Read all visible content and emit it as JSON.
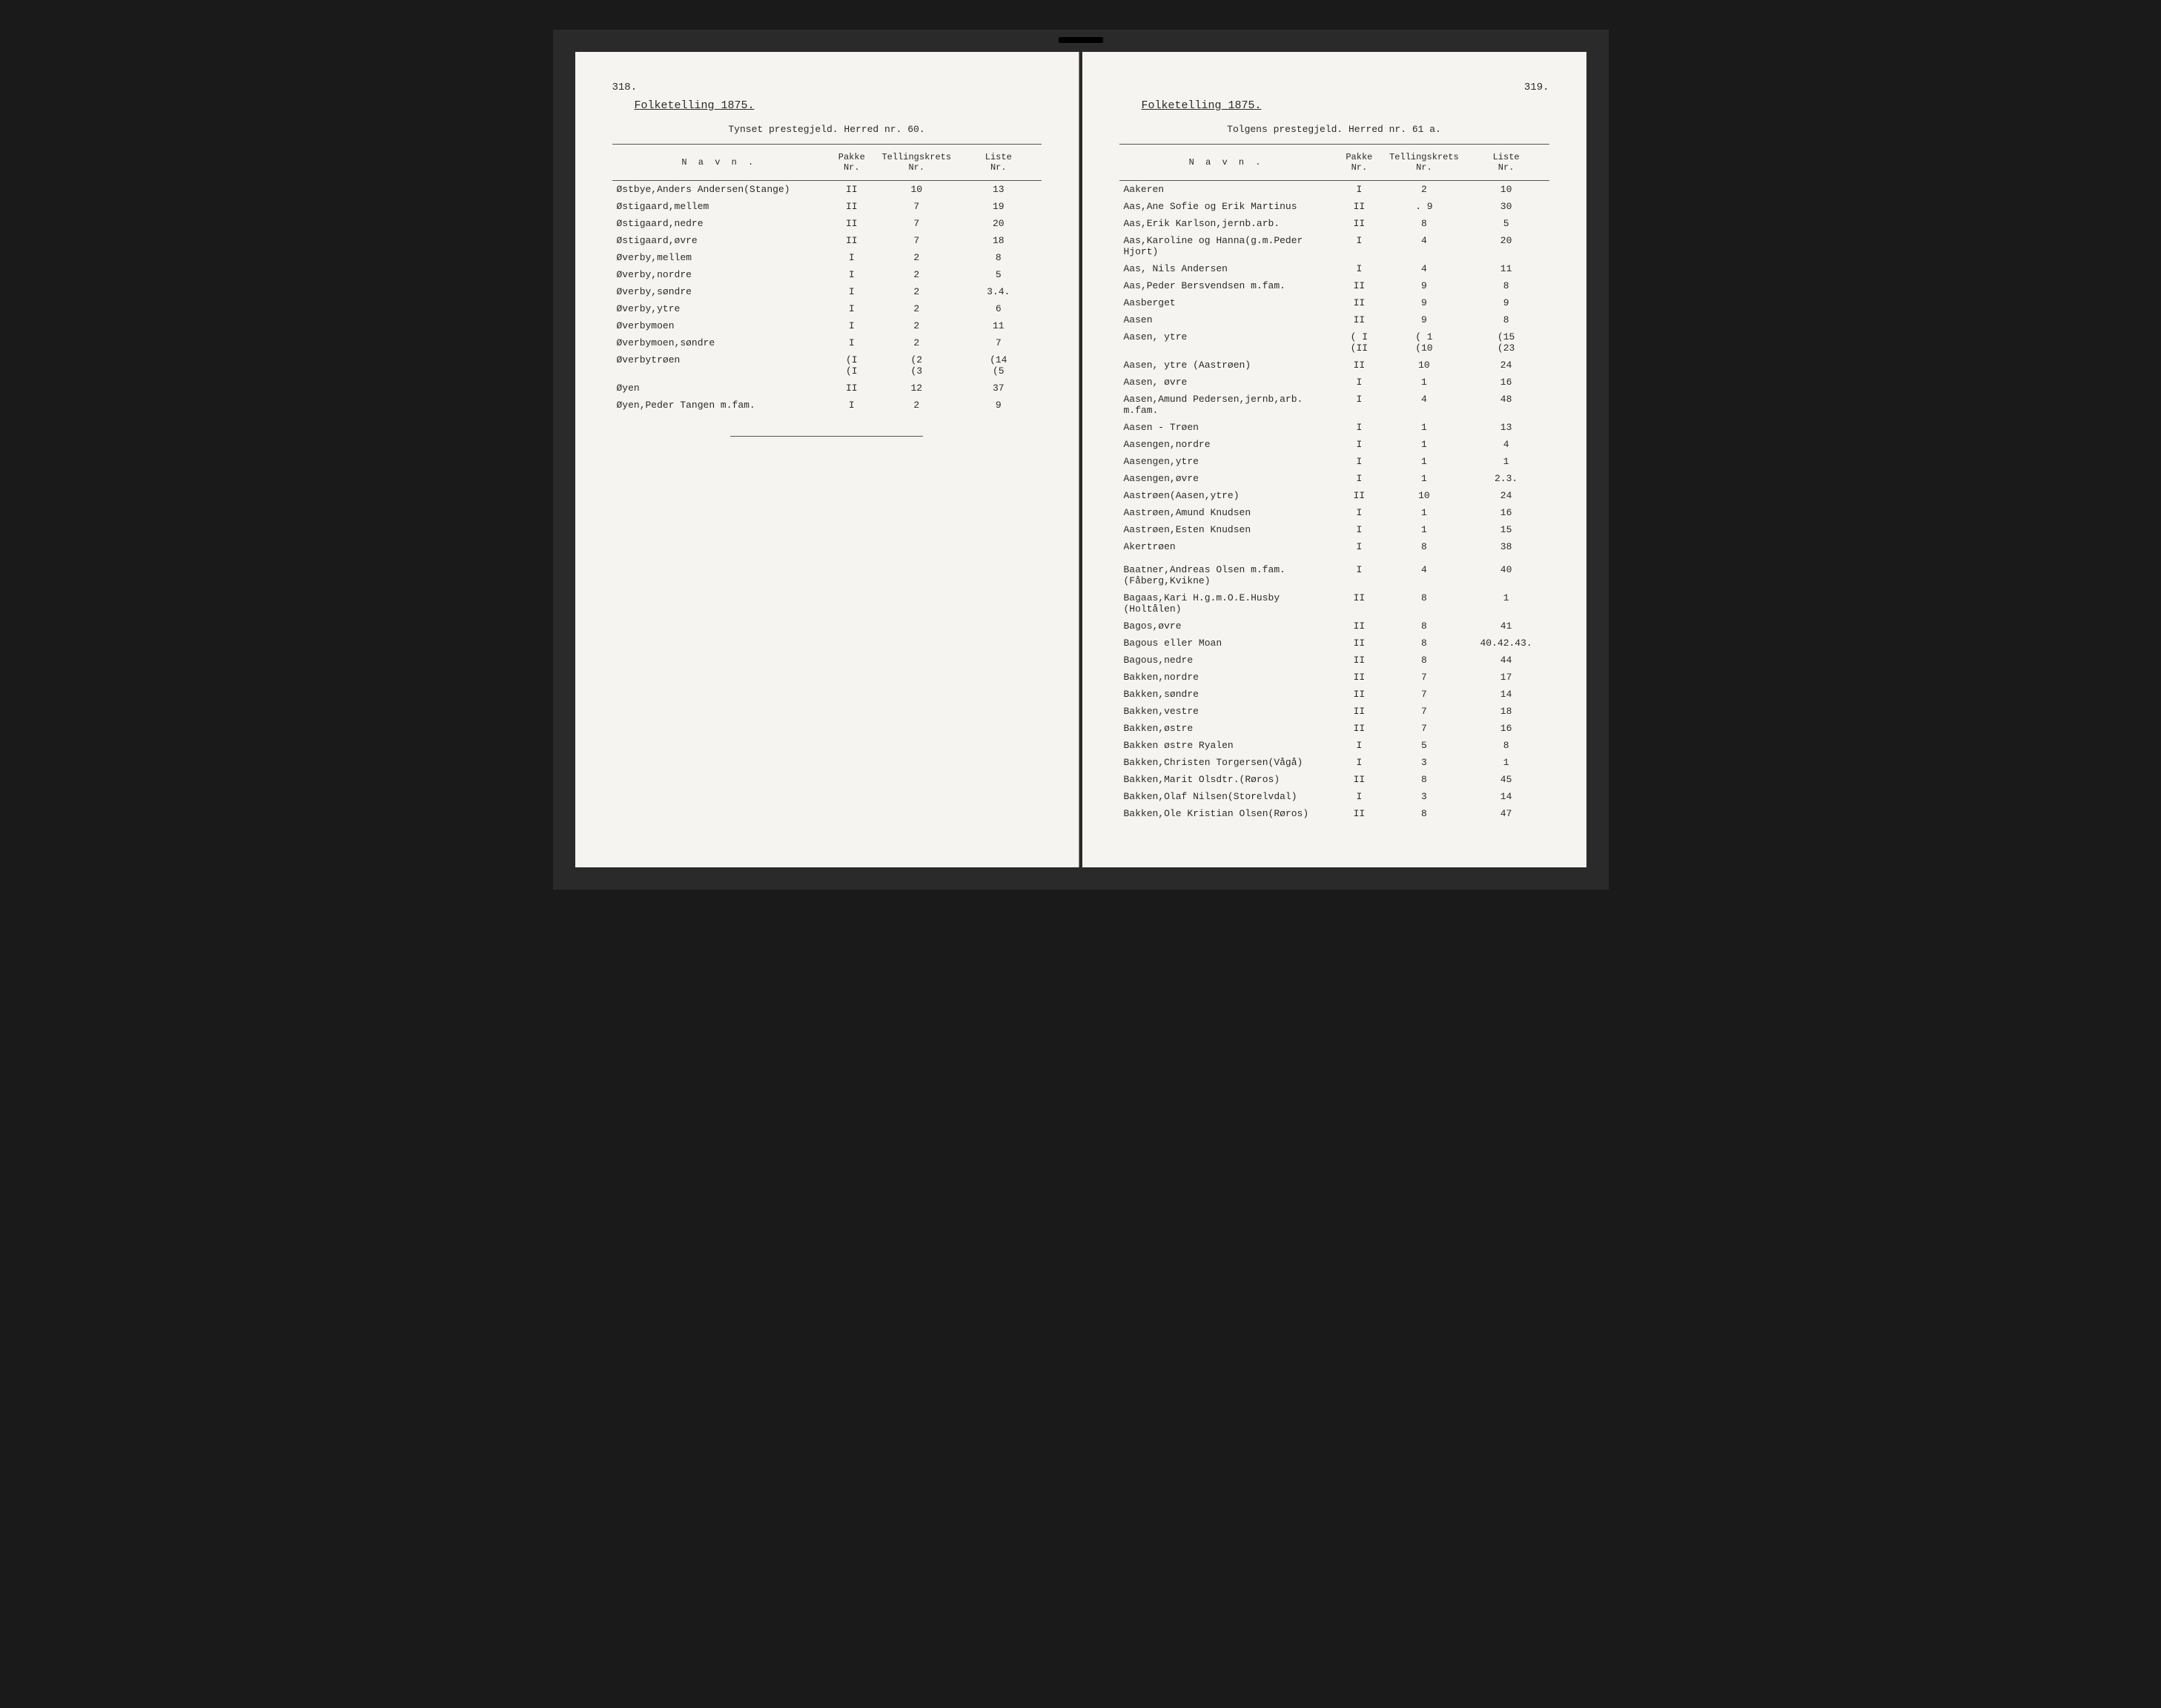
{
  "leftPage": {
    "pageNumber": "318.",
    "title": "Folketelling 1875.",
    "subtitle": "Tynset prestegjeld. Herred nr. 60.",
    "headers": {
      "navn": "N a v n .",
      "pakke": "Pakke\nNr.",
      "tellingskrets": "Tellingskrets\nNr.",
      "liste": "Liste\nNr."
    },
    "rows": [
      {
        "navn": "Østbye,Anders Andersen(Stange)",
        "pakke": "II",
        "krets": "10",
        "liste": "13"
      },
      {
        "navn": "Østigaard,mellem",
        "pakke": "II",
        "krets": "7",
        "liste": "19"
      },
      {
        "navn": "Østigaard,nedre",
        "pakke": "II",
        "krets": "7",
        "liste": "20"
      },
      {
        "navn": "Østigaard,øvre",
        "pakke": "II",
        "krets": "7",
        "liste": "18"
      },
      {
        "navn": "Øverby,mellem",
        "pakke": "I",
        "krets": "2",
        "liste": "8"
      },
      {
        "navn": "Øverby,nordre",
        "pakke": "I",
        "krets": "2",
        "liste": "5"
      },
      {
        "navn": "Øverby,søndre",
        "pakke": "I",
        "krets": "2",
        "liste": "3.4."
      },
      {
        "navn": "Øverby,ytre",
        "pakke": "I",
        "krets": "2",
        "liste": "6"
      },
      {
        "navn": "Øverbymoen",
        "pakke": "I",
        "krets": "2",
        "liste": "11"
      },
      {
        "navn": "Øverbymoen,søndre",
        "pakke": "I",
        "krets": "2",
        "liste": "7"
      },
      {
        "navn": "Øverbytrøen",
        "pakke": "(I\n(I",
        "krets": "(2\n(3",
        "liste": "(14\n(5"
      },
      {
        "navn": "Øyen",
        "pakke": "II",
        "krets": "12",
        "liste": "37"
      },
      {
        "navn": "Øyen,Peder Tangen m.fam.",
        "pakke": "I",
        "krets": "2",
        "liste": "9"
      }
    ]
  },
  "rightPage": {
    "pageNumber": "319.",
    "title": "Folketelling 1875.",
    "subtitle": "Tolgens prestegjeld. Herred nr. 61 a.",
    "headers": {
      "navn": "N a v n .",
      "pakke": "Pakke\nNr.",
      "tellingskrets": "Tellingskrets\nNr.",
      "liste": "Liste\nNr."
    },
    "rows": [
      {
        "navn": "Aakeren",
        "pakke": "I",
        "krets": "2",
        "liste": "10"
      },
      {
        "navn": "Aas,Ane Sofie og Erik Martinus",
        "pakke": "II",
        "krets": ". 9",
        "liste": "30"
      },
      {
        "navn": "Aas,Erik Karlson,jernb.arb.",
        "pakke": "II",
        "krets": "8",
        "liste": "5"
      },
      {
        "navn": "Aas,Karoline og Hanna(g.m.Peder Hjort)",
        "pakke": "I",
        "krets": "4",
        "liste": "20"
      },
      {
        "navn": "Aas, Nils Andersen",
        "pakke": "I",
        "krets": "4",
        "liste": "11"
      },
      {
        "navn": "Aas,Peder Bersvendsen m.fam.",
        "pakke": "II",
        "krets": "9",
        "liste": "8"
      },
      {
        "navn": "Aasberget",
        "pakke": "II",
        "krets": "9",
        "liste": "9"
      },
      {
        "navn": "Aasen",
        "pakke": "II",
        "krets": "9",
        "liste": "8"
      },
      {
        "navn": "Aasen, ytre",
        "pakke": "( I\n(II",
        "krets": "( 1\n(10",
        "liste": "(15\n(23"
      },
      {
        "navn": "Aasen, ytre (Aastrøen)",
        "pakke": "II",
        "krets": "10",
        "liste": "24"
      },
      {
        "navn": "Aasen, øvre",
        "pakke": "I",
        "krets": "1",
        "liste": "16"
      },
      {
        "navn": "Aasen,Amund Pedersen,jernb,arb. m.fam.",
        "pakke": "I",
        "krets": "4",
        "liste": "48"
      },
      {
        "navn": "Aasen - Trøen",
        "pakke": "I",
        "krets": "1",
        "liste": "13"
      },
      {
        "navn": "Aasengen,nordre",
        "pakke": "I",
        "krets": "1",
        "liste": "4"
      },
      {
        "navn": "Aasengen,ytre",
        "pakke": "I",
        "krets": "1",
        "liste": "1"
      },
      {
        "navn": "Aasengen,øvre",
        "pakke": "I",
        "krets": "1",
        "liste": "2.3."
      },
      {
        "navn": "Aastrøen(Aasen,ytre)",
        "pakke": "II",
        "krets": "10",
        "liste": "24"
      },
      {
        "navn": "Aastrøen,Amund Knudsen",
        "pakke": "I",
        "krets": "1",
        "liste": "16"
      },
      {
        "navn": "Aastrøen,Esten Knudsen",
        "pakke": "I",
        "krets": "1",
        "liste": "15"
      },
      {
        "navn": "Akertrøen",
        "pakke": "I",
        "krets": "8",
        "liste": "38"
      },
      {
        "spacer": true
      },
      {
        "navn": "Baatner,Andreas Olsen m.fam. (Fåberg,Kvikne)",
        "pakke": "I",
        "krets": "4",
        "liste": "40"
      },
      {
        "navn": "Bagaas,Kari H.g.m.O.E.Husby (Holtålen)",
        "pakke": "II",
        "krets": "8",
        "liste": "1"
      },
      {
        "navn": "Bagos,øvre",
        "pakke": "II",
        "krets": "8",
        "liste": "41"
      },
      {
        "navn": "Bagous eller Moan",
        "pakke": "II",
        "krets": "8",
        "liste": "40.42.43."
      },
      {
        "navn": "Bagous,nedre",
        "pakke": "II",
        "krets": "8",
        "liste": "44"
      },
      {
        "navn": "Bakken,nordre",
        "pakke": "II",
        "krets": "7",
        "liste": "17"
      },
      {
        "navn": "Bakken,søndre",
        "pakke": "II",
        "krets": "7",
        "liste": "14"
      },
      {
        "navn": "Bakken,vestre",
        "pakke": "II",
        "krets": "7",
        "liste": "18"
      },
      {
        "navn": "Bakken,østre",
        "pakke": "II",
        "krets": "7",
        "liste": "16"
      },
      {
        "navn": "Bakken østre Ryalen",
        "pakke": "I",
        "krets": "5",
        "liste": "8"
      },
      {
        "navn": "Bakken,Christen Torgersen(Vågå)",
        "pakke": "I",
        "krets": "3",
        "liste": "1"
      },
      {
        "navn": "Bakken,Marit Olsdtr.(Røros)",
        "pakke": "II",
        "krets": "8",
        "liste": "45"
      },
      {
        "navn": "Bakken,Olaf Nilsen(Storelvdal)",
        "pakke": "I",
        "krets": "3",
        "liste": "14"
      },
      {
        "navn": "Bakken,Ole Kristian Olsen(Røros)",
        "pakke": "II",
        "krets": "8",
        "liste": "47"
      }
    ]
  }
}
